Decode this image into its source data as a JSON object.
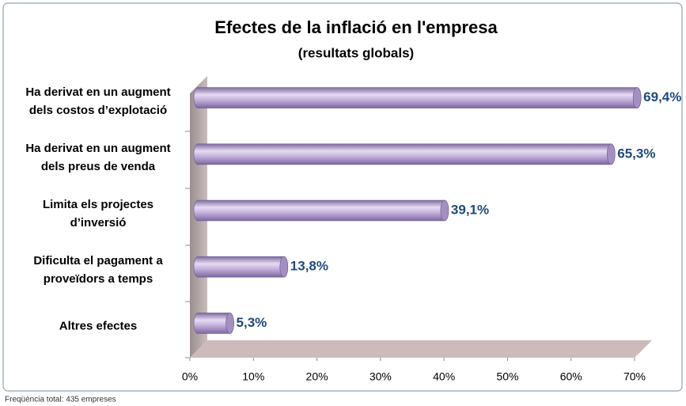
{
  "chart_data": {
    "type": "bar",
    "orientation": "horizontal",
    "title": "Efectes de la inflació en l'empresa",
    "subtitle": "(resultats globals)",
    "categories": [
      "Ha derivat en un augment dels costos d’explotació",
      "Ha derivat en un augment dels preus de venda",
      "Limita els projectes d’inversió",
      "Dificulta el pagament a proveïdors a temps",
      "Altres efectes"
    ],
    "values": [
      69.4,
      65.3,
      39.1,
      13.8,
      5.3
    ],
    "value_labels": [
      "69,4%",
      "65,3%",
      "39,1%",
      "13,8%",
      "5,3%"
    ],
    "color": "#b9a3d6",
    "xlim": [
      0,
      70
    ],
    "xticks": [
      {
        "value": 0,
        "label": "0%"
      },
      {
        "value": 10,
        "label": "10%"
      },
      {
        "value": 20,
        "label": "20%"
      },
      {
        "value": 30,
        "label": "30%"
      },
      {
        "value": 40,
        "label": "40%"
      },
      {
        "value": 50,
        "label": "50%"
      },
      {
        "value": 60,
        "label": "60%"
      },
      {
        "value": 70,
        "label": "70%"
      }
    ],
    "footnote": "Freqüència total: 435 empreses"
  }
}
